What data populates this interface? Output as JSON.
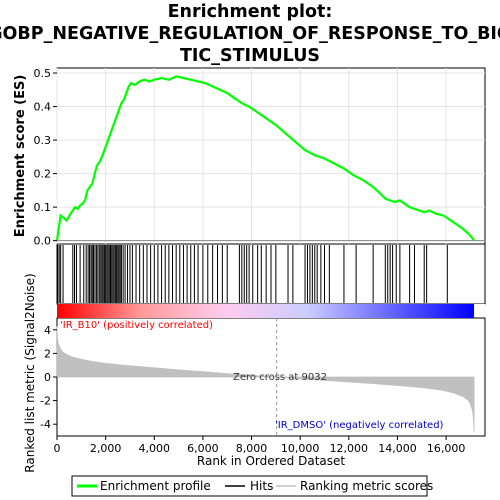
{
  "chart_data": {
    "type": "line",
    "title_lines": [
      "Enrichment plot:",
      "GOBP_NEGATIVE_REGULATION_OF_RESPONSE_TO_BIO",
      "TIC_STIMULUS"
    ],
    "xlabel": "Rank in Ordered Dataset",
    "ylabel_top": "Enrichment score (ES)",
    "ylabel_bottom": "Ranked list metric (Signal2Noise)",
    "xlim": [
      0,
      17600
    ],
    "x_ticks": [
      0,
      2000,
      4000,
      6000,
      8000,
      10000,
      12000,
      14000,
      16000
    ],
    "x_tick_labels": [
      "0",
      "2,000",
      "4,000",
      "6,000",
      "8,000",
      "10,000",
      "12,000",
      "14,000",
      "16,000"
    ],
    "es_ylim": [
      -0.01,
      0.515
    ],
    "es_ticks": [
      0.0,
      0.1,
      0.2,
      0.3,
      0.4,
      0.5
    ],
    "es_tick_labels": [
      "0.0",
      "0.1",
      "0.2",
      "0.3",
      "0.4",
      "0.5"
    ],
    "metric_ylim": [
      -5,
      5
    ],
    "metric_ticks": [
      -4,
      -2,
      0,
      2,
      4
    ],
    "metric_tick_labels": [
      "-4",
      "-2",
      "0",
      "2",
      "4"
    ],
    "zero_cross": 9032,
    "zero_cross_label": "Zero cross at 9032",
    "pos_label": "'IR_B10' (positively correlated)",
    "neg_label": "'IR_DMSO' (negatively correlated)",
    "n_genes": 17150,
    "series": [
      {
        "name": "Enrichment profile",
        "color": "#00ff00",
        "x": [
          0,
          80,
          150,
          250,
          400,
          550,
          650,
          750,
          850,
          950,
          1050,
          1150,
          1250,
          1350,
          1450,
          1550,
          1650,
          1750,
          1850,
          1950,
          2050,
          2150,
          2250,
          2350,
          2450,
          2550,
          2650,
          2750,
          2850,
          2950,
          3050,
          3200,
          3400,
          3600,
          3800,
          4000,
          4300,
          4600,
          4900,
          5200,
          5500,
          5800,
          6100,
          6400,
          6700,
          7000,
          7300,
          7600,
          7900,
          8200,
          8600,
          9000,
          9400,
          9800,
          10200,
          10600,
          11000,
          11400,
          11800,
          12200,
          12600,
          13000,
          13300,
          13500,
          13700,
          13900,
          14100,
          14300,
          14500,
          14700,
          14900,
          15100,
          15300,
          15600,
          15900,
          16100,
          16400,
          16700,
          17000,
          17150
        ],
        "y": [
          0.0,
          0.04,
          0.075,
          0.07,
          0.06,
          0.08,
          0.09,
          0.1,
          0.095,
          0.105,
          0.11,
          0.12,
          0.15,
          0.16,
          0.17,
          0.2,
          0.225,
          0.235,
          0.25,
          0.27,
          0.29,
          0.31,
          0.33,
          0.35,
          0.37,
          0.39,
          0.41,
          0.42,
          0.44,
          0.46,
          0.47,
          0.465,
          0.475,
          0.48,
          0.475,
          0.48,
          0.485,
          0.48,
          0.49,
          0.485,
          0.48,
          0.475,
          0.47,
          0.46,
          0.45,
          0.44,
          0.425,
          0.41,
          0.4,
          0.385,
          0.365,
          0.345,
          0.32,
          0.295,
          0.27,
          0.255,
          0.245,
          0.23,
          0.215,
          0.195,
          0.18,
          0.16,
          0.14,
          0.125,
          0.12,
          0.115,
          0.12,
          0.11,
          0.1,
          0.095,
          0.09,
          0.085,
          0.09,
          0.08,
          0.075,
          0.065,
          0.05,
          0.035,
          0.015,
          0.0
        ]
      },
      {
        "name": "Hits",
        "color": "#000000",
        "positions": [
          30,
          90,
          150,
          250,
          650,
          720,
          800,
          950,
          1100,
          1200,
          1280,
          1340,
          1400,
          1450,
          1500,
          1560,
          1620,
          1680,
          1740,
          1800,
          1850,
          1900,
          1950,
          2000,
          2050,
          2100,
          2150,
          2200,
          2250,
          2300,
          2350,
          2400,
          2450,
          2500,
          2550,
          2600,
          2650,
          2720,
          2800,
          2900,
          3000,
          3100,
          3250,
          3400,
          3550,
          3700,
          3850,
          4000,
          4150,
          4300,
          4450,
          4600,
          4750,
          4900,
          5050,
          5200,
          5350,
          5500,
          5650,
          5800,
          6000,
          6200,
          6400,
          6600,
          6800,
          7000,
          7500,
          7600,
          7700,
          7800,
          7900,
          8050,
          8250,
          8400,
          8600,
          8800,
          9000,
          9500,
          9700,
          10200,
          10300,
          10400,
          10500,
          10600,
          10700,
          10850,
          11000,
          11200,
          11800,
          12300,
          13000,
          13500,
          13600,
          13700,
          13800,
          13950,
          14100,
          14500,
          14700,
          15100,
          15200,
          16050
        ]
      },
      {
        "name": "Ranking metric scores",
        "color": "#c0c0c0",
        "x": [
          0,
          20,
          60,
          120,
          200,
          350,
          600,
          1000,
          1500,
          2000,
          3000,
          4000,
          5000,
          6000,
          7000,
          8000,
          9032,
          10000,
          11000,
          12000,
          13000,
          14000,
          15000,
          15800,
          16300,
          16700,
          16900,
          17000,
          17080,
          17130,
          17150
        ],
        "y": [
          4.3,
          3.2,
          2.8,
          2.5,
          2.2,
          1.95,
          1.7,
          1.5,
          1.3,
          1.15,
          0.95,
          0.78,
          0.6,
          0.45,
          0.28,
          0.14,
          0.0,
          -0.15,
          -0.28,
          -0.42,
          -0.56,
          -0.72,
          -0.9,
          -1.1,
          -1.35,
          -1.65,
          -1.95,
          -2.3,
          -2.8,
          -3.6,
          -4.7
        ]
      }
    ],
    "legend": {
      "placement": "bottom",
      "entries": [
        {
          "label": "Enrichment profile",
          "color": "#00ff00"
        },
        {
          "label": "Hits",
          "color": "#000000"
        },
        {
          "label": "Ranking metric scores",
          "color": "#c0c0c0"
        }
      ]
    },
    "gradient_colors": [
      "#ff0000",
      "#ff9999",
      "#ffccee",
      "#ccccff",
      "#6666ff",
      "#0000ff"
    ]
  }
}
